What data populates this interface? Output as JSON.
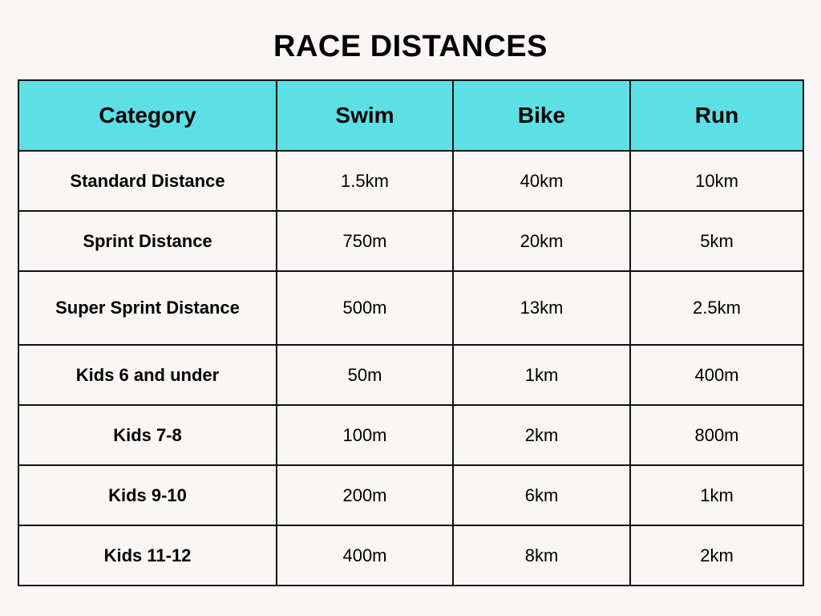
{
  "title": "RACE DISTANCES",
  "colors": {
    "background": "#faf6f5",
    "header_bg": "#5ce0e6",
    "border": "#111111"
  },
  "table": {
    "headers": [
      "Category",
      "Swim",
      "Bike",
      "Run"
    ],
    "rows": [
      {
        "category": "Standard Distance",
        "swim": "1.5km",
        "bike": "40km",
        "run": "10km"
      },
      {
        "category": "Sprint Distance",
        "swim": "750m",
        "bike": "20km",
        "run": "5km"
      },
      {
        "category": "Super Sprint Distance",
        "swim": "500m",
        "bike": "13km",
        "run": "2.5km"
      },
      {
        "category": "Kids 6 and under",
        "swim": "50m",
        "bike": "1km",
        "run": "400m"
      },
      {
        "category": "Kids 7-8",
        "swim": "100m",
        "bike": "2km",
        "run": "800m"
      },
      {
        "category": "Kids 9-10",
        "swim": "200m",
        "bike": "6km",
        "run": "1km"
      },
      {
        "category": "Kids 11-12",
        "swim": "400m",
        "bike": "8km",
        "run": "2km"
      }
    ]
  }
}
